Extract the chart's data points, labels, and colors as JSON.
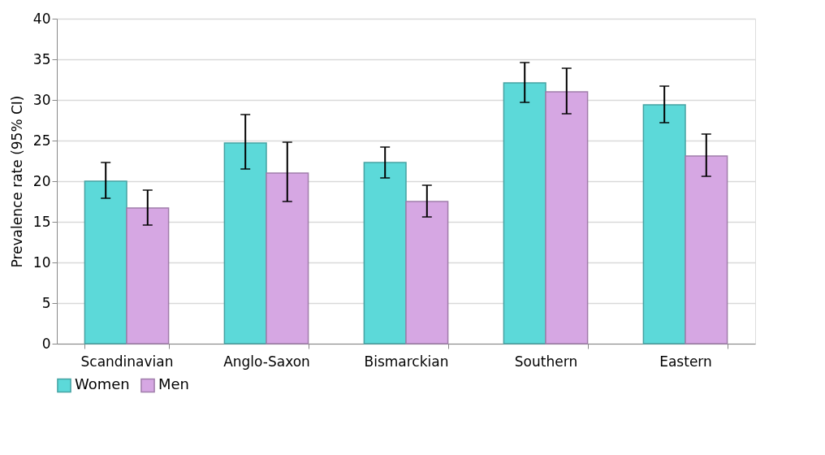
{
  "chart_data": {
    "type": "bar",
    "ylabel": "Prevalence rate (95% CI)",
    "categories": [
      "Scandinavian",
      "Anglo-Saxon",
      "Bismarckian",
      "Southern",
      "Eastern"
    ],
    "series": [
      {
        "name": "Women",
        "color": "#5cd9d9",
        "values": [
          20.0,
          24.7,
          22.3,
          32.1,
          29.4
        ],
        "errors": [
          [
            17.9,
            22.3
          ],
          [
            21.5,
            28.2
          ],
          [
            20.4,
            24.2
          ],
          [
            29.7,
            34.6
          ],
          [
            27.2,
            31.7
          ]
        ]
      },
      {
        "name": "Men",
        "color": "#d6a7e3",
        "values": [
          16.7,
          21.0,
          17.5,
          31.0,
          23.1
        ],
        "errors": [
          [
            14.6,
            18.9
          ],
          [
            17.5,
            24.8
          ],
          [
            15.6,
            19.5
          ],
          [
            28.3,
            33.9
          ],
          [
            20.6,
            25.8
          ]
        ]
      }
    ],
    "ylim": [
      0,
      40
    ],
    "yticks": [
      0,
      5,
      10,
      15,
      20,
      25,
      30,
      35,
      40
    ],
    "grid": "y",
    "legend": "bottom"
  }
}
